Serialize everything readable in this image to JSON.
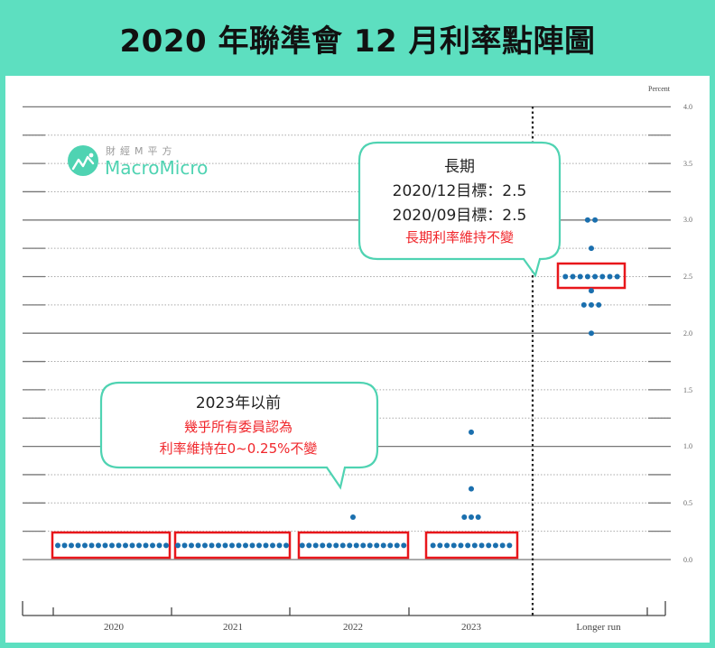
{
  "title": "2020 年聯準會 12 月利率點陣圖",
  "logo": {
    "cn": "財經M平方",
    "en": "MacroMicro"
  },
  "axis": {
    "unit_label": "Percent",
    "y_ticks": [
      "4.0",
      "3.5",
      "3.0",
      "2.5",
      "2.0",
      "1.5",
      "1.0",
      "0.5",
      "0.0"
    ]
  },
  "callouts": {
    "longrun": {
      "line1": "長期",
      "line2": "2020/12目標：2.5",
      "line3": "2020/09目標：2.5",
      "line4": "長期利率維持不變"
    },
    "near_term": {
      "line1": "2023年以前",
      "line2": "幾乎所有委員認為",
      "line3": "利率維持在0~0.25%不變"
    }
  },
  "colors": {
    "frame": "#5ddfc0",
    "dot": "#1a6fae",
    "highlight_box": "#e8161b",
    "callout_border": "#4fd3b2",
    "callout_red": "#f0262b"
  },
  "chart_data": {
    "type": "scatter",
    "title": "2020 年聯準會 12 月利率點陣圖",
    "xlabel": "",
    "ylabel": "Percent",
    "ylim": [
      0,
      4.0
    ],
    "grid": "solid at whole percents, dotted every 0.25",
    "categories": [
      "2020",
      "2021",
      "2022",
      "2023",
      "Longer run"
    ],
    "dots": [
      {
        "category": "2020",
        "points": [
          {
            "rate": 0.125,
            "count": 17
          }
        ]
      },
      {
        "category": "2021",
        "points": [
          {
            "rate": 0.125,
            "count": 17
          }
        ]
      },
      {
        "category": "2022",
        "points": [
          {
            "rate": 0.125,
            "count": 16
          },
          {
            "rate": 0.375,
            "count": 1
          }
        ]
      },
      {
        "category": "2023",
        "points": [
          {
            "rate": 0.125,
            "count": 12
          },
          {
            "rate": 0.375,
            "count": 3
          },
          {
            "rate": 0.625,
            "count": 1
          },
          {
            "rate": 1.125,
            "count": 1
          }
        ]
      },
      {
        "category": "Longer run",
        "points": [
          {
            "rate": 2.0,
            "count": 1
          },
          {
            "rate": 2.25,
            "count": 3
          },
          {
            "rate": 2.375,
            "count": 1
          },
          {
            "rate": 2.5,
            "count": 8
          },
          {
            "rate": 2.75,
            "count": 1
          },
          {
            "rate": 3.0,
            "count": 2
          }
        ]
      }
    ],
    "highlights": [
      {
        "category": "2020",
        "rate": 0.125
      },
      {
        "category": "2021",
        "rate": 0.125
      },
      {
        "category": "2022",
        "rate": 0.125
      },
      {
        "category": "2023",
        "rate": 0.125
      },
      {
        "category": "Longer run",
        "rate": 2.5
      }
    ],
    "annotations": [
      "長期 2020/12目標：2.5 2020/09目標：2.5 長期利率維持不變",
      "2023年以前 幾乎所有委員認為 利率維持在0~0.25%不變"
    ]
  }
}
